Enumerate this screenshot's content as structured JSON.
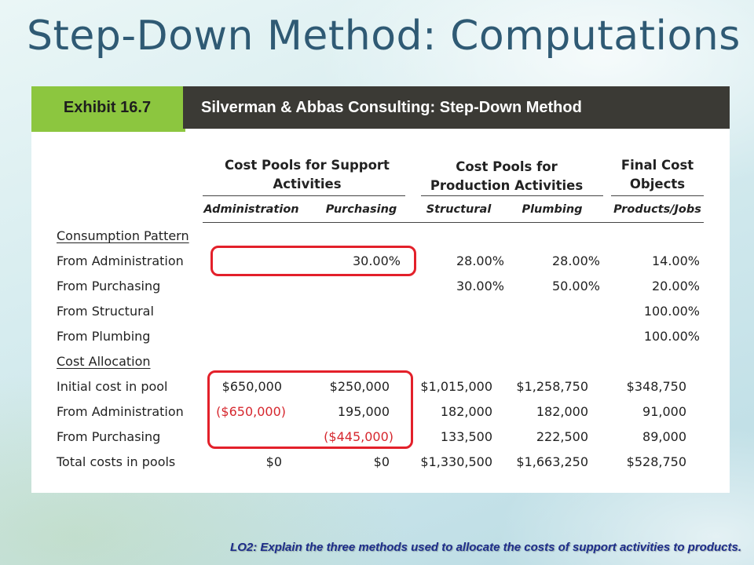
{
  "slide": {
    "title": "Step-Down Method: Computations",
    "footnote": "LO2: Explain the three methods used to allocate the costs of support activities to products."
  },
  "exhibit": {
    "tag": "Exhibit 16.7",
    "title": "Silverman & Abbas Consulting: Step-Down Method",
    "group_headers": {
      "support": "Cost Pools for Support Activities",
      "production": "Cost Pools for Production Activities",
      "final": "Final Cost Objects"
    },
    "columns": [
      "Administration",
      "Purchasing",
      "Structural",
      "Plumbing",
      "Products/Jobs"
    ],
    "consumption_section": "Consumption Pattern",
    "consumption_rows": [
      {
        "label": "From Administration",
        "values": [
          "",
          "30.00%",
          "28.00%",
          "28.00%",
          "14.00%"
        ]
      },
      {
        "label": "From Purchasing",
        "values": [
          "",
          "",
          "30.00%",
          "50.00%",
          "20.00%"
        ]
      },
      {
        "label": "From Structural",
        "values": [
          "",
          "",
          "",
          "",
          "100.00%"
        ]
      },
      {
        "label": "From Plumbing",
        "values": [
          "",
          "",
          "",
          "",
          "100.00%"
        ]
      }
    ],
    "allocation_section": "Cost Allocation",
    "allocation_rows": [
      {
        "label": "Initial cost in pool",
        "values": [
          "$650,000",
          "$250,000",
          "$1,015,000",
          "$1,258,750",
          "$348,750"
        ]
      },
      {
        "label": "From Administration",
        "values": [
          "($650,000)",
          "195,000",
          "182,000",
          "182,000",
          "91,000"
        ]
      },
      {
        "label": "From Purchasing",
        "values": [
          "",
          "($445,000)",
          "133,500",
          "222,500",
          "89,000"
        ]
      },
      {
        "label": "Total costs in pools",
        "values": [
          "$0",
          "$0",
          "$1,330,500",
          "$1,663,250",
          "$528,750"
        ]
      }
    ]
  },
  "colors": {
    "title": "#2f5a74",
    "header_bar": "#3b3a35",
    "tag_green": "#8cc63f",
    "negative_red": "#d6272e",
    "highlight_red": "#e3202a",
    "footnote_blue": "#1d2d8a"
  }
}
